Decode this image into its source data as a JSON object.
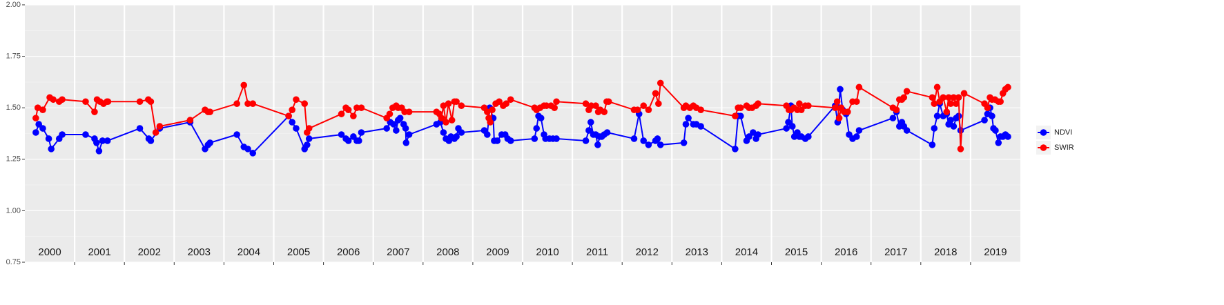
{
  "chart_data": {
    "type": "line",
    "xlim": [
      2000,
      2020
    ],
    "ylim": [
      0.75,
      2.0
    ],
    "yticks": [
      0.75,
      {
        "value": 1.0,
        "label": "1.00"
      },
      1.25,
      {
        "value": 1.5,
        "label": "1.50"
      },
      1.75,
      {
        "value": 2.0,
        "label": "2.00"
      }
    ],
    "grid": true,
    "legend": "right",
    "year_labels": [
      2000,
      2001,
      2002,
      2003,
      2004,
      2005,
      2006,
      2007,
      2008,
      2009,
      2010,
      2011,
      2012,
      2013,
      2014,
      2015,
      2016,
      2017,
      2018,
      2019
    ],
    "series": [
      {
        "name": "NDVI",
        "color": "#0000ff",
        "x": [
          2000.22,
          2000.28,
          2000.36,
          2000.48,
          2000.53,
          2000.69,
          2000.75,
          2001.22,
          2001.4,
          2001.44,
          2001.49,
          2001.56,
          2001.66,
          2002.31,
          2002.49,
          2002.53,
          2002.71,
          2003.32,
          2003.62,
          2003.68,
          2003.72,
          2004.26,
          2004.4,
          2004.48,
          2004.58,
          2005.3,
          2005.37,
          2005.45,
          2005.62,
          2005.67,
          2005.71,
          2006.36,
          2006.45,
          2006.5,
          2006.6,
          2006.67,
          2006.71,
          2006.76,
          2007.27,
          2007.34,
          2007.41,
          2007.46,
          2007.5,
          2007.54,
          2007.61,
          2007.65,
          2007.66,
          2007.72,
          2008.27,
          2008.35,
          2008.41,
          2008.46,
          2008.52,
          2008.56,
          2008.63,
          2008.67,
          2008.71,
          2008.77,
          2009.23,
          2009.29,
          2009.34,
          2009.41,
          2009.43,
          2009.49,
          2009.58,
          2009.65,
          2009.7,
          2009.76,
          2010.24,
          2010.28,
          2010.32,
          2010.37,
          2010.43,
          2010.46,
          2010.54,
          2010.61,
          2010.68,
          2011.27,
          2011.33,
          2011.37,
          2011.42,
          2011.47,
          2011.51,
          2011.55,
          2011.59,
          2011.64,
          2011.7,
          2012.24,
          2012.34,
          2012.43,
          2012.53,
          2012.67,
          2012.71,
          2012.77,
          2013.24,
          2013.28,
          2013.33,
          2013.43,
          2013.49,
          2013.58,
          2014.27,
          2014.33,
          2014.38,
          2014.5,
          2014.55,
          2014.63,
          2014.69,
          2014.73,
          2015.3,
          2015.34,
          2015.39,
          2015.42,
          2015.46,
          2015.52,
          2015.56,
          2015.6,
          2015.68,
          2015.74,
          2016.28,
          2016.33,
          2016.38,
          2016.43,
          2016.5,
          2016.56,
          2016.63,
          2016.71,
          2016.76,
          2017.44,
          2017.51,
          2017.57,
          2017.62,
          2017.66,
          2017.72,
          2018.23,
          2018.27,
          2018.33,
          2018.38,
          2018.45,
          2018.52,
          2018.56,
          2018.6,
          2018.66,
          2018.71,
          2018.76,
          2018.8,
          2019.28,
          2019.34,
          2019.39,
          2019.43,
          2019.46,
          2019.5,
          2019.56,
          2019.6,
          2019.65,
          2019.7,
          2019.75
        ],
        "values": [
          1.38,
          1.42,
          1.4,
          1.35,
          1.3,
          1.35,
          1.37,
          1.37,
          1.35,
          1.33,
          1.29,
          1.34,
          1.34,
          1.4,
          1.35,
          1.34,
          1.4,
          1.43,
          1.3,
          1.32,
          1.33,
          1.37,
          1.31,
          1.3,
          1.28,
          1.46,
          1.43,
          1.4,
          1.3,
          1.32,
          1.35,
          1.37,
          1.35,
          1.34,
          1.36,
          1.34,
          1.34,
          1.38,
          1.4,
          1.43,
          1.42,
          1.39,
          1.44,
          1.45,
          1.42,
          1.4,
          1.33,
          1.37,
          1.42,
          1.43,
          1.38,
          1.35,
          1.34,
          1.36,
          1.35,
          1.36,
          1.4,
          1.38,
          1.39,
          1.37,
          1.5,
          1.45,
          1.34,
          1.34,
          1.37,
          1.37,
          1.35,
          1.34,
          1.35,
          1.4,
          1.46,
          1.45,
          1.37,
          1.35,
          1.35,
          1.35,
          1.35,
          1.34,
          1.39,
          1.43,
          1.37,
          1.37,
          1.32,
          1.36,
          1.36,
          1.37,
          1.38,
          1.35,
          1.47,
          1.34,
          1.32,
          1.34,
          1.35,
          1.32,
          1.33,
          1.42,
          1.45,
          1.42,
          1.42,
          1.41,
          1.3,
          1.46,
          1.46,
          1.34,
          1.36,
          1.38,
          1.35,
          1.37,
          1.4,
          1.43,
          1.51,
          1.41,
          1.36,
          1.38,
          1.36,
          1.36,
          1.35,
          1.36,
          1.51,
          1.43,
          1.59,
          1.49,
          1.47,
          1.37,
          1.35,
          1.36,
          1.39,
          1.45,
          1.48,
          1.41,
          1.43,
          1.41,
          1.39,
          1.32,
          1.4,
          1.46,
          1.52,
          1.46,
          1.47,
          1.42,
          1.44,
          1.41,
          1.45,
          1.46,
          1.39,
          1.44,
          1.47,
          1.5,
          1.46,
          1.4,
          1.39,
          1.33,
          1.36,
          1.36,
          1.37,
          1.36
        ]
      },
      {
        "name": "SWIR",
        "color": "#ff0000",
        "x": [
          2000.22,
          2000.26,
          2000.36,
          2000.5,
          2000.57,
          2000.69,
          2000.75,
          2001.22,
          2001.4,
          2001.45,
          2001.51,
          2001.58,
          2001.65,
          2001.67,
          2002.31,
          2002.48,
          2002.53,
          2002.63,
          2002.71,
          2003.32,
          2003.62,
          2003.68,
          2003.72,
          2004.26,
          2004.4,
          2004.48,
          2004.58,
          2005.3,
          2005.37,
          2005.45,
          2005.62,
          2005.67,
          2005.71,
          2006.36,
          2006.45,
          2006.5,
          2006.6,
          2006.67,
          2006.76,
          2007.27,
          2007.33,
          2007.39,
          2007.46,
          2007.5,
          2007.57,
          2007.63,
          2007.72,
          2008.27,
          2008.33,
          2008.37,
          2008.41,
          2008.46,
          2008.51,
          2008.58,
          2008.63,
          2008.67,
          2008.77,
          2009.23,
          2009.29,
          2009.32,
          2009.35,
          2009.39,
          2009.46,
          2009.53,
          2009.61,
          2009.67,
          2009.76,
          2010.24,
          2010.28,
          2010.35,
          2010.43,
          2010.48,
          2010.57,
          2010.64,
          2010.68,
          2011.27,
          2011.33,
          2011.38,
          2011.47,
          2011.52,
          2011.56,
          2011.64,
          2011.69,
          2011.73,
          2012.24,
          2012.31,
          2012.43,
          2012.53,
          2012.67,
          2012.73,
          2012.77,
          2013.24,
          2013.28,
          2013.36,
          2013.43,
          2013.49,
          2013.58,
          2014.27,
          2014.33,
          2014.38,
          2014.5,
          2014.55,
          2014.61,
          2014.69,
          2014.73,
          2015.3,
          2015.35,
          2015.39,
          2015.45,
          2015.52,
          2015.56,
          2015.6,
          2015.68,
          2015.74,
          2016.28,
          2016.32,
          2016.36,
          2016.4,
          2016.46,
          2016.53,
          2016.63,
          2016.71,
          2016.76,
          2017.44,
          2017.51,
          2017.57,
          2017.62,
          2017.66,
          2017.72,
          2018.23,
          2018.27,
          2018.33,
          2018.38,
          2018.45,
          2018.52,
          2018.56,
          2018.6,
          2018.66,
          2018.71,
          2018.76,
          2018.8,
          2018.87,
          2019.28,
          2019.34,
          2019.39,
          2019.43,
          2019.49,
          2019.56,
          2019.6,
          2019.65,
          2019.7,
          2019.75
        ],
        "values": [
          1.45,
          1.5,
          1.49,
          1.55,
          1.54,
          1.53,
          1.54,
          1.53,
          1.48,
          1.54,
          1.53,
          1.52,
          1.53,
          1.53,
          1.53,
          1.54,
          1.53,
          1.38,
          1.41,
          1.44,
          1.49,
          1.48,
          1.48,
          1.52,
          1.61,
          1.52,
          1.52,
          1.46,
          1.49,
          1.54,
          1.52,
          1.38,
          1.4,
          1.47,
          1.5,
          1.49,
          1.46,
          1.5,
          1.5,
          1.45,
          1.47,
          1.5,
          1.51,
          1.5,
          1.5,
          1.48,
          1.48,
          1.48,
          1.47,
          1.45,
          1.51,
          1.43,
          1.52,
          1.44,
          1.53,
          1.53,
          1.51,
          1.5,
          1.48,
          1.45,
          1.43,
          1.49,
          1.52,
          1.53,
          1.51,
          1.52,
          1.54,
          1.5,
          1.49,
          1.5,
          1.51,
          1.51,
          1.51,
          1.5,
          1.53,
          1.52,
          1.49,
          1.51,
          1.51,
          1.48,
          1.49,
          1.48,
          1.53,
          1.53,
          1.49,
          1.49,
          1.51,
          1.49,
          1.57,
          1.52,
          1.62,
          1.5,
          1.51,
          1.5,
          1.51,
          1.5,
          1.49,
          1.46,
          1.5,
          1.5,
          1.51,
          1.5,
          1.5,
          1.51,
          1.52,
          1.51,
          1.49,
          1.49,
          1.5,
          1.49,
          1.52,
          1.49,
          1.51,
          1.51,
          1.5,
          1.53,
          1.45,
          1.5,
          1.48,
          1.48,
          1.53,
          1.53,
          1.6,
          1.5,
          1.49,
          1.54,
          1.54,
          1.55,
          1.58,
          1.55,
          1.52,
          1.6,
          1.53,
          1.55,
          1.48,
          1.55,
          1.52,
          1.55,
          1.52,
          1.55,
          1.3,
          1.57,
          1.52,
          1.5,
          1.55,
          1.54,
          1.54,
          1.53,
          1.53,
          1.57,
          1.59,
          1.6
        ]
      }
    ]
  }
}
